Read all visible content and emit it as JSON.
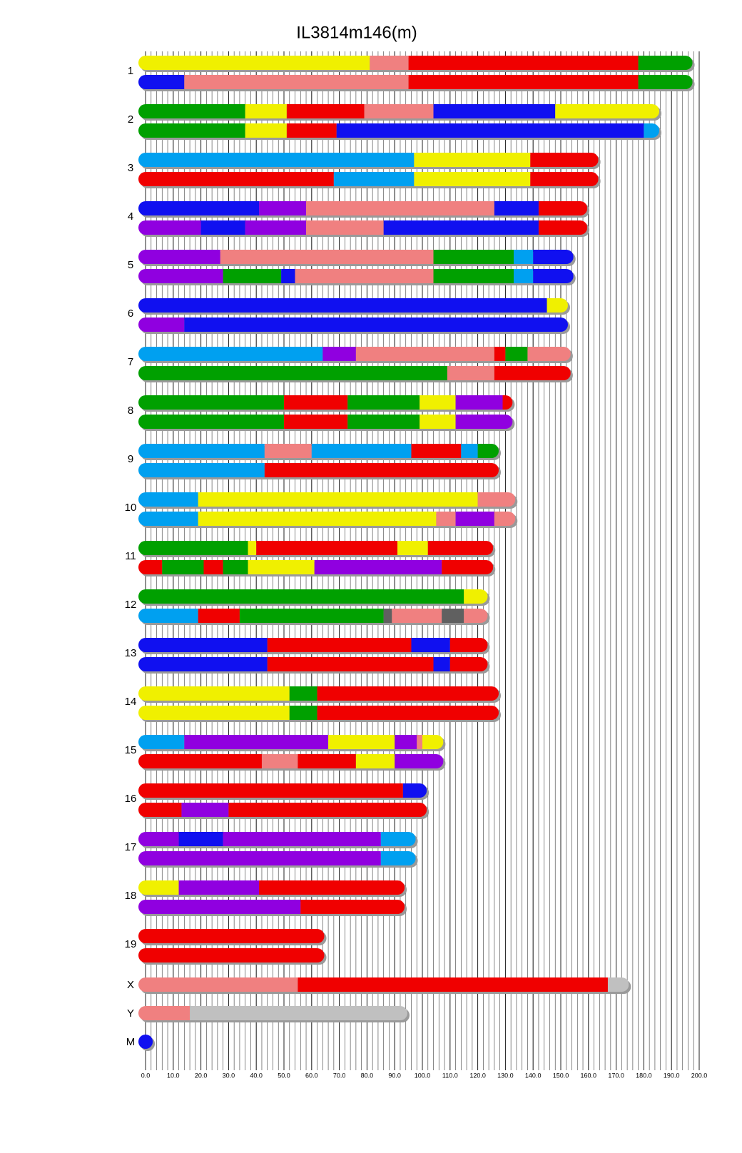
{
  "chart_data": {
    "type": "haplotype-map",
    "title": "IL3814m146(m)",
    "xlim": [
      0,
      200
    ],
    "xticks": [
      {
        "value": 0,
        "label": "0.0"
      },
      {
        "value": 10,
        "label": "10.0"
      },
      {
        "value": 20,
        "label": "20.0"
      },
      {
        "value": 30,
        "label": "30.0"
      },
      {
        "value": 40,
        "label": "40.0"
      },
      {
        "value": 50,
        "label": "50.0"
      },
      {
        "value": 60,
        "label": "60.0"
      },
      {
        "value": 70,
        "label": "70.0"
      },
      {
        "value": 80,
        "label": "80.0"
      },
      {
        "value": 90,
        "label": "90.0"
      },
      {
        "value": 100,
        "label": "100.0"
      },
      {
        "value": 110,
        "label": "110.0"
      },
      {
        "value": 120,
        "label": "120.0"
      },
      {
        "value": 130,
        "label": "130.0"
      },
      {
        "value": 140,
        "label": "140.0"
      },
      {
        "value": 150,
        "label": "150.0"
      },
      {
        "value": 160,
        "label": "160.0"
      },
      {
        "value": 170,
        "label": "170.0"
      },
      {
        "value": 180,
        "label": "180.0"
      },
      {
        "value": 190,
        "label": "190.0"
      },
      {
        "value": 200,
        "label": "200.0"
      }
    ],
    "grid": true,
    "minor_grid_step": 2,
    "chromosomes": [
      {
        "label": "1",
        "haplotypes": [
          [
            [
              0,
              81,
              "#f0f000"
            ],
            [
              81,
              95,
              "#f08080"
            ],
            [
              95,
              178,
              "#f00000"
            ],
            [
              178,
              195,
              "#00a000"
            ]
          ],
          [
            [
              0,
              14,
              "#1010f0"
            ],
            [
              14,
              95,
              "#f08080"
            ],
            [
              95,
              178,
              "#f00000"
            ],
            [
              178,
              195,
              "#00a000"
            ]
          ]
        ]
      },
      {
        "label": "2",
        "haplotypes": [
          [
            [
              0,
              36,
              "#00a000"
            ],
            [
              36,
              51,
              "#f0f000"
            ],
            [
              51,
              79,
              "#f00000"
            ],
            [
              79,
              104,
              "#f08080"
            ],
            [
              104,
              148,
              "#1010f0"
            ],
            [
              148,
              183,
              "#f0f000"
            ]
          ],
          [
            [
              0,
              36,
              "#00a000"
            ],
            [
              36,
              51,
              "#f0f000"
            ],
            [
              51,
              69,
              "#f00000"
            ],
            [
              69,
              180,
              "#1010f0"
            ],
            [
              180,
              183,
              "#00a0f0"
            ]
          ]
        ]
      },
      {
        "label": "3",
        "haplotypes": [
          [
            [
              0,
              97,
              "#00a0f0"
            ],
            [
              97,
              139,
              "#f0f000"
            ],
            [
              139,
              161,
              "#f00000"
            ]
          ],
          [
            [
              0,
              68,
              "#f00000"
            ],
            [
              68,
              97,
              "#00a0f0"
            ],
            [
              97,
              139,
              "#f0f000"
            ],
            [
              139,
              161,
              "#f00000"
            ]
          ]
        ]
      },
      {
        "label": "4",
        "haplotypes": [
          [
            [
              0,
              41,
              "#1010f0"
            ],
            [
              41,
              58,
              "#9000e0"
            ],
            [
              58,
              126,
              "#f08080"
            ],
            [
              126,
              142,
              "#1010f0"
            ],
            [
              142,
              157,
              "#f00000"
            ]
          ],
          [
            [
              0,
              20,
              "#9000e0"
            ],
            [
              20,
              36,
              "#1010f0"
            ],
            [
              36,
              58,
              "#9000e0"
            ],
            [
              58,
              86,
              "#f08080"
            ],
            [
              86,
              142,
              "#1010f0"
            ],
            [
              142,
              157,
              "#f00000"
            ]
          ]
        ]
      },
      {
        "label": "5",
        "haplotypes": [
          [
            [
              0,
              27,
              "#9000e0"
            ],
            [
              27,
              104,
              "#f08080"
            ],
            [
              104,
              133,
              "#00a000"
            ],
            [
              133,
              140,
              "#00a0f0"
            ],
            [
              140,
              152,
              "#1010f0"
            ]
          ],
          [
            [
              0,
              28,
              "#9000e0"
            ],
            [
              28,
              49,
              "#00a000"
            ],
            [
              49,
              54,
              "#1010f0"
            ],
            [
              54,
              104,
              "#f08080"
            ],
            [
              104,
              133,
              "#00a000"
            ],
            [
              133,
              140,
              "#00a0f0"
            ],
            [
              140,
              152,
              "#1010f0"
            ]
          ]
        ]
      },
      {
        "label": "6",
        "haplotypes": [
          [
            [
              0,
              145,
              "#1010f0"
            ],
            [
              145,
              150,
              "#f0f000"
            ]
          ],
          [
            [
              0,
              14,
              "#9000e0"
            ],
            [
              14,
              150,
              "#1010f0"
            ]
          ]
        ]
      },
      {
        "label": "7",
        "haplotypes": [
          [
            [
              0,
              64,
              "#00a0f0"
            ],
            [
              64,
              76,
              "#9000e0"
            ],
            [
              76,
              126,
              "#f08080"
            ],
            [
              126,
              130,
              "#f00000"
            ],
            [
              130,
              138,
              "#00a000"
            ],
            [
              138,
              151,
              "#f08080"
            ]
          ],
          [
            [
              0,
              109,
              "#00a000"
            ],
            [
              109,
              126,
              "#f08080"
            ],
            [
              126,
              151,
              "#f00000"
            ]
          ]
        ]
      },
      {
        "label": "8",
        "haplotypes": [
          [
            [
              0,
              50,
              "#00a000"
            ],
            [
              50,
              73,
              "#f00000"
            ],
            [
              73,
              99,
              "#00a000"
            ],
            [
              99,
              112,
              "#f0f000"
            ],
            [
              112,
              129,
              "#9000e0"
            ],
            [
              129,
              130,
              "#f00000"
            ]
          ],
          [
            [
              0,
              50,
              "#00a000"
            ],
            [
              50,
              73,
              "#f00000"
            ],
            [
              73,
              99,
              "#00a000"
            ],
            [
              99,
              112,
              "#f0f000"
            ],
            [
              112,
              130,
              "#9000e0"
            ]
          ]
        ]
      },
      {
        "label": "9",
        "haplotypes": [
          [
            [
              0,
              43,
              "#00a0f0"
            ],
            [
              43,
              60,
              "#f08080"
            ],
            [
              60,
              96,
              "#00a0f0"
            ],
            [
              96,
              114,
              "#f00000"
            ],
            [
              114,
              120,
              "#00a0f0"
            ],
            [
              120,
              125,
              "#00a000"
            ]
          ],
          [
            [
              0,
              43,
              "#00a0f0"
            ],
            [
              43,
              125,
              "#f00000"
            ]
          ]
        ]
      },
      {
        "label": "10",
        "haplotypes": [
          [
            [
              0,
              19,
              "#00a0f0"
            ],
            [
              19,
              120,
              "#f0f000"
            ],
            [
              120,
              131,
              "#f08080"
            ]
          ],
          [
            [
              0,
              19,
              "#00a0f0"
            ],
            [
              19,
              105,
              "#f0f000"
            ],
            [
              105,
              112,
              "#f08080"
            ],
            [
              112,
              126,
              "#9000e0"
            ],
            [
              126,
              131,
              "#f08080"
            ]
          ]
        ]
      },
      {
        "label": "11",
        "haplotypes": [
          [
            [
              0,
              37,
              "#00a000"
            ],
            [
              37,
              40,
              "#f0f000"
            ],
            [
              40,
              91,
              "#f00000"
            ],
            [
              91,
              102,
              "#f0f000"
            ],
            [
              102,
              123,
              "#f00000"
            ]
          ],
          [
            [
              0,
              6,
              "#f00000"
            ],
            [
              6,
              21,
              "#00a000"
            ],
            [
              21,
              28,
              "#f00000"
            ],
            [
              28,
              37,
              "#00a000"
            ],
            [
              37,
              61,
              "#f0f000"
            ],
            [
              61,
              107,
              "#9000e0"
            ],
            [
              107,
              123,
              "#f00000"
            ]
          ]
        ]
      },
      {
        "label": "12",
        "haplotypes": [
          [
            [
              0,
              115,
              "#00a000"
            ],
            [
              115,
              121,
              "#f0f000"
            ]
          ],
          [
            [
              0,
              19,
              "#00a0f0"
            ],
            [
              19,
              34,
              "#f00000"
            ],
            [
              34,
              86,
              "#00a000"
            ],
            [
              86,
              89,
              "#606060"
            ],
            [
              89,
              107,
              "#f08080"
            ],
            [
              107,
              115,
              "#606060"
            ],
            [
              115,
              121,
              "#f08080"
            ]
          ]
        ]
      },
      {
        "label": "13",
        "haplotypes": [
          [
            [
              0,
              44,
              "#1010f0"
            ],
            [
              44,
              96,
              "#f00000"
            ],
            [
              96,
              110,
              "#1010f0"
            ],
            [
              110,
              121,
              "#f00000"
            ]
          ],
          [
            [
              0,
              44,
              "#1010f0"
            ],
            [
              44,
              104,
              "#f00000"
            ],
            [
              104,
              110,
              "#1010f0"
            ],
            [
              110,
              121,
              "#f00000"
            ]
          ]
        ]
      },
      {
        "label": "14",
        "haplotypes": [
          [
            [
              0,
              52,
              "#f0f000"
            ],
            [
              52,
              62,
              "#00a000"
            ],
            [
              62,
              125,
              "#f00000"
            ]
          ],
          [
            [
              0,
              52,
              "#f0f000"
            ],
            [
              52,
              62,
              "#00a000"
            ],
            [
              62,
              125,
              "#f00000"
            ]
          ]
        ]
      },
      {
        "label": "15",
        "haplotypes": [
          [
            [
              0,
              14,
              "#00a0f0"
            ],
            [
              14,
              66,
              "#9000e0"
            ],
            [
              66,
              90,
              "#f0f000"
            ],
            [
              90,
              98,
              "#9000e0"
            ],
            [
              98,
              100,
              "#f08080"
            ],
            [
              100,
              105,
              "#f0f000"
            ]
          ],
          [
            [
              0,
              42,
              "#f00000"
            ],
            [
              42,
              55,
              "#f08080"
            ],
            [
              55,
              76,
              "#f00000"
            ],
            [
              76,
              90,
              "#f0f000"
            ],
            [
              90,
              105,
              "#9000e0"
            ]
          ]
        ]
      },
      {
        "label": "16",
        "haplotypes": [
          [
            [
              0,
              93,
              "#f00000"
            ],
            [
              93,
              99,
              "#1010f0"
            ]
          ],
          [
            [
              0,
              13,
              "#f00000"
            ],
            [
              13,
              30,
              "#9000e0"
            ],
            [
              30,
              99,
              "#f00000"
            ]
          ]
        ]
      },
      {
        "label": "17",
        "haplotypes": [
          [
            [
              0,
              12,
              "#9000e0"
            ],
            [
              12,
              28,
              "#1010f0"
            ],
            [
              28,
              85,
              "#9000e0"
            ],
            [
              85,
              95,
              "#00a0f0"
            ]
          ],
          [
            [
              0,
              85,
              "#9000e0"
            ],
            [
              85,
              95,
              "#00a0f0"
            ]
          ]
        ]
      },
      {
        "label": "18",
        "haplotypes": [
          [
            [
              0,
              12,
              "#f0f000"
            ],
            [
              12,
              41,
              "#9000e0"
            ],
            [
              41,
              91,
              "#f00000"
            ]
          ],
          [
            [
              0,
              56,
              "#9000e0"
            ],
            [
              56,
              91,
              "#f00000"
            ]
          ]
        ]
      },
      {
        "label": "19",
        "haplotypes": [
          [
            [
              0,
              62,
              "#f00000"
            ]
          ],
          [
            [
              0,
              62,
              "#f00000"
            ]
          ]
        ]
      },
      {
        "label": "X",
        "haplotypes": [
          [
            [
              0,
              55,
              "#f08080"
            ],
            [
              55,
              167,
              "#f00000"
            ],
            [
              167,
              172,
              "#c0c0c0"
            ]
          ]
        ]
      },
      {
        "label": "Y",
        "haplotypes": [
          [
            [
              0,
              16,
              "#f08080"
            ],
            [
              16,
              92,
              "#c0c0c0"
            ]
          ]
        ]
      },
      {
        "label": "M",
        "haplotypes": [
          [
            [
              0,
              0.016,
              "#1010f0"
            ]
          ]
        ]
      }
    ]
  }
}
